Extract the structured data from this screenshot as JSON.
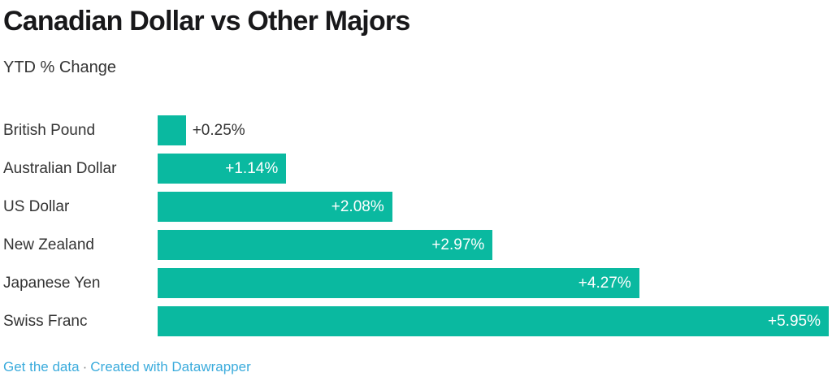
{
  "header": {
    "title": "Canadian Dollar vs Other Majors",
    "subtitle": "YTD % Change"
  },
  "chart_data": {
    "type": "bar",
    "orientation": "horizontal",
    "title": "Canadian Dollar vs Other Majors",
    "subtitle": "YTD % Change",
    "categories": [
      "British Pound",
      "Australian Dollar",
      "US Dollar",
      "New Zealand",
      "Japanese Yen",
      "Swiss Franc"
    ],
    "values": [
      0.25,
      1.14,
      2.08,
      2.97,
      4.27,
      5.95
    ],
    "value_labels": [
      "+0.25%",
      "+1.14%",
      "+2.08%",
      "+2.97%",
      "+4.27%",
      "+5.95%"
    ],
    "xlim": [
      0,
      5.95
    ],
    "bar_color": "#0ab9a0",
    "label_color_inside": "#ffffff",
    "label_color_outside": "#333333",
    "grid": false,
    "legend": false
  },
  "footer": {
    "get_data_label": "Get the data",
    "separator": "·",
    "attribution": "Created with Datawrapper",
    "link_color": "#3aabdc"
  }
}
